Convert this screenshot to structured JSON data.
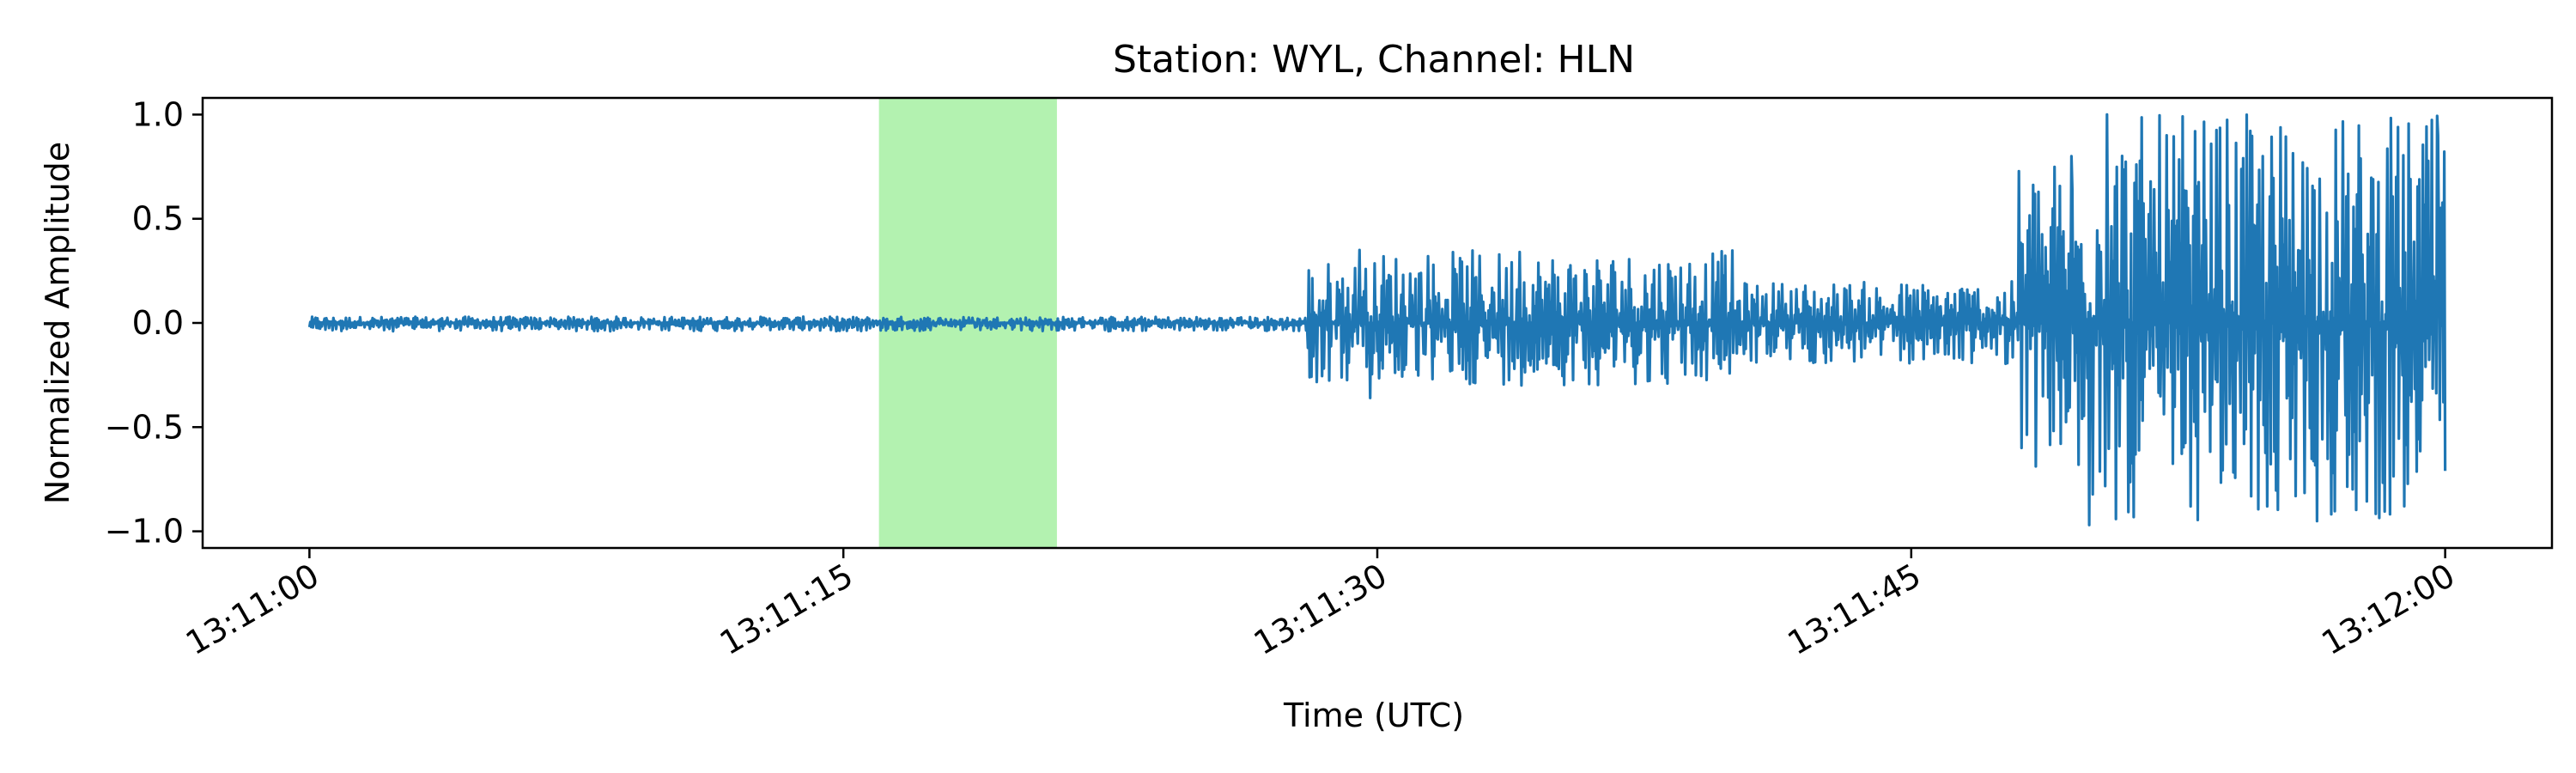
{
  "chart_data": {
    "type": "line",
    "title": "Station: WYL, Channel: HLN",
    "xlabel": "Time (UTC)",
    "ylabel": "Normalized Amplitude",
    "x_unit": "time (UTC)",
    "xlim": [
      "13:10:57",
      "13:12:03"
    ],
    "ylim": [
      -1.08,
      1.08
    ],
    "x_ticks": [
      "13:11:00",
      "13:11:15",
      "13:11:30",
      "13:11:45",
      "13:12:00"
    ],
    "y_ticks": [
      -1.0,
      -0.5,
      0.0,
      0.5,
      1.0
    ],
    "y_tick_labels": [
      "−1.0",
      "−0.5",
      "0.0",
      "0.5",
      "1.0"
    ],
    "grid": false,
    "legend": "none",
    "highlight_span": {
      "start": "13:11:16",
      "end": "13:11:21",
      "color": "#b3f2b0"
    },
    "series": [
      {
        "color": "#1f77b4",
        "trace": {
          "start": "13:11:00",
          "end": "13:12:00",
          "segments": [
            {
              "from": "13:11:00",
              "to": "13:11:28",
              "amplitude_range": [
                -0.04,
                0.03
              ]
            },
            {
              "from": "13:11:28",
              "to": "13:11:30",
              "amplitude_range": [
                -0.3,
                0.3
              ]
            },
            {
              "from": "13:11:30",
              "to": "13:11:40",
              "amplitude_range": [
                -0.3,
                0.35
              ]
            },
            {
              "from": "13:11:40",
              "to": "13:11:48",
              "amplitude_range": [
                -0.2,
                0.2
              ]
            },
            {
              "from": "13:11:48",
              "to": "13:11:50",
              "amplitude_range": [
                -0.7,
                0.8
              ]
            },
            {
              "from": "13:11:50",
              "to": "13:12:00",
              "amplitude_range": [
                -0.97,
                1.0
              ]
            }
          ]
        },
        "peaks": [
          {
            "t": "13:11:29.5",
            "value": 0.35
          },
          {
            "t": "13:11:29.8",
            "value": -0.36
          },
          {
            "t": "13:11:34.0",
            "value": 0.34
          },
          {
            "t": "13:11:49.5",
            "value": 0.8
          },
          {
            "t": "13:11:49.7",
            "value": -0.68
          },
          {
            "t": "13:11:50.0",
            "value": -0.97
          },
          {
            "t": "13:11:50.5",
            "value": 1.0
          },
          {
            "t": "13:11:55.0",
            "value": -0.88
          },
          {
            "t": "13:11:56.0",
            "value": 0.77
          },
          {
            "t": "13:11:59.8",
            "value": 0.9
          }
        ]
      }
    ]
  }
}
